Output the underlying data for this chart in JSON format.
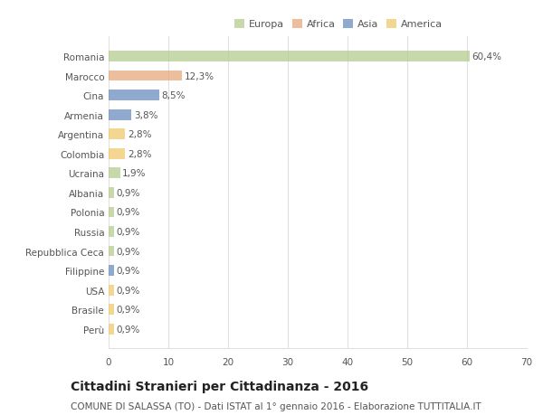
{
  "countries": [
    "Romania",
    "Marocco",
    "Cina",
    "Armenia",
    "Argentina",
    "Colombia",
    "Ucraina",
    "Albania",
    "Polonia",
    "Russia",
    "Repubblica Ceca",
    "Filippine",
    "USA",
    "Brasile",
    "Perù"
  ],
  "values": [
    60.4,
    12.3,
    8.5,
    3.8,
    2.8,
    2.8,
    1.9,
    0.9,
    0.9,
    0.9,
    0.9,
    0.9,
    0.9,
    0.9,
    0.9
  ],
  "labels": [
    "60,4%",
    "12,3%",
    "8,5%",
    "3,8%",
    "2,8%",
    "2,8%",
    "1,9%",
    "0,9%",
    "0,9%",
    "0,9%",
    "0,9%",
    "0,9%",
    "0,9%",
    "0,9%",
    "0,9%"
  ],
  "colors": [
    "#b5cc8e",
    "#e8a97e",
    "#6b8cbf",
    "#6b8cbf",
    "#f0c96e",
    "#f0c96e",
    "#b5cc8e",
    "#b5cc8e",
    "#b5cc8e",
    "#b5cc8e",
    "#b5cc8e",
    "#6b8cbf",
    "#f0c96e",
    "#f0c96e",
    "#f0c96e"
  ],
  "legend_labels": [
    "Europa",
    "Africa",
    "Asia",
    "America"
  ],
  "legend_colors": [
    "#b5cc8e",
    "#e8a97e",
    "#6b8cbf",
    "#f0c96e"
  ],
  "xlim": [
    0,
    70
  ],
  "xticks": [
    0,
    10,
    20,
    30,
    40,
    50,
    60,
    70
  ],
  "title": "Cittadini Stranieri per Cittadinanza - 2016",
  "subtitle": "COMUNE DI SALASSA (TO) - Dati ISTAT al 1° gennaio 2016 - Elaborazione TUTTITALIA.IT",
  "background_color": "#ffffff",
  "grid_color": "#e0e0e0",
  "text_color": "#555555",
  "title_fontsize": 10,
  "subtitle_fontsize": 7.5,
  "label_fontsize": 7.5,
  "tick_fontsize": 7.5,
  "bar_height": 0.55,
  "bar_alpha": 0.75
}
